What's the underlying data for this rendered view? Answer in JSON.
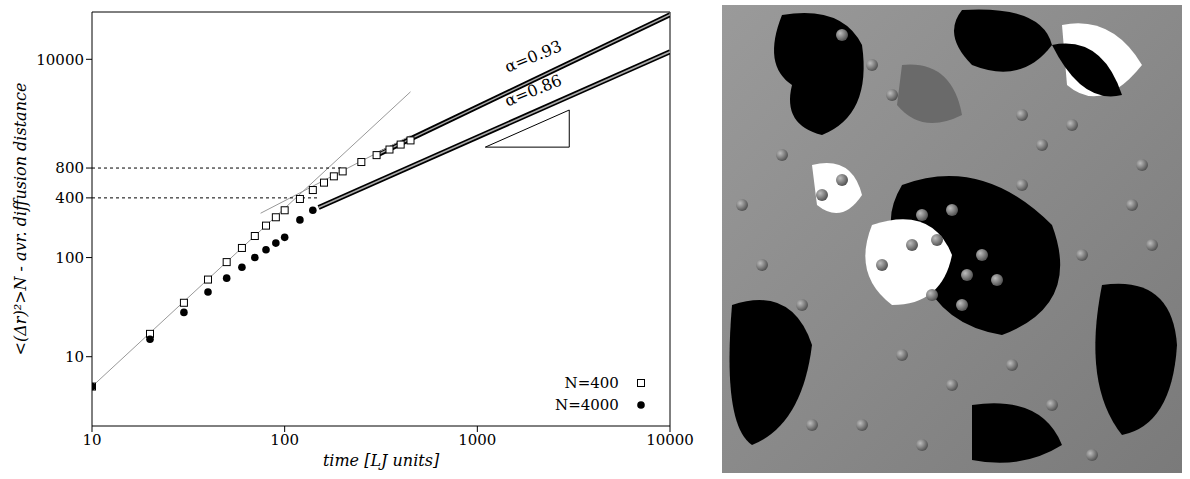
{
  "chart_data": {
    "type": "scatter",
    "log": true,
    "x_label": "time [LJ units]",
    "y_label": "<(Δr)²>N - avr. diffusion distance",
    "xlim": [
      10,
      10000
    ],
    "ylim": [
      2,
      30000
    ],
    "xticks": [
      10,
      100,
      1000,
      10000
    ],
    "yticks": [
      10,
      100,
      400,
      800,
      10000
    ],
    "legend": "lower right",
    "series": [
      {
        "name": "N=400",
        "color": "#000000",
        "marker": "square",
        "x": [
          10,
          20,
          30,
          40,
          50,
          60,
          70,
          80,
          90,
          100,
          120,
          140,
          160,
          180,
          200,
          250,
          300,
          350,
          400,
          450
        ],
        "values": [
          5,
          17,
          35,
          60,
          90,
          125,
          165,
          210,
          255,
          300,
          390,
          480,
          570,
          660,
          740,
          920,
          1080,
          1230,
          1380,
          1520
        ]
      },
      {
        "name": "N=4000",
        "color": "#000000",
        "marker": "circle",
        "x": [
          10,
          20,
          30,
          40,
          50,
          60,
          70,
          80,
          90,
          100,
          120,
          140
        ],
        "values": [
          5,
          15,
          28,
          45,
          62,
          80,
          100,
          120,
          140,
          160,
          240,
          300
        ]
      }
    ],
    "guide_lines": [
      {
        "x": [
          10,
          450
        ],
        "values": [
          5,
          4700
        ],
        "line_style": "thin",
        "color": "#999999"
      },
      {
        "x": [
          75,
          450
        ],
        "values": [
          280,
          1700
        ],
        "line_style": "thin",
        "color": "#999999"
      },
      {
        "x": [
          300,
          10000
        ],
        "values": [
          1080,
          28200
        ],
        "line_style": "thick",
        "color": "#000000"
      },
      {
        "x": [
          150,
          10000
        ],
        "values": [
          320,
          11900
        ],
        "line_style": "thick",
        "color": "#000000"
      },
      {
        "x": [
          10,
          200
        ],
        "values": [
          800,
          800
        ],
        "line_style": "dashed",
        "color": "#000000"
      },
      {
        "x": [
          10,
          150
        ],
        "values": [
          400,
          400
        ],
        "line_style": "dashed",
        "color": "#000000"
      },
      {
        "x": [
          1100,
          3000,
          3000,
          1100
        ],
        "values": [
          1300,
          1300,
          3080,
          1300
        ],
        "line_style": "solid",
        "color": "#000000"
      }
    ],
    "annotations": [
      {
        "text": "α=0.93",
        "x": 2000,
        "y": 9500
      },
      {
        "text": "α=0.86",
        "x": 2000,
        "y": 4300
      }
    ]
  }
}
